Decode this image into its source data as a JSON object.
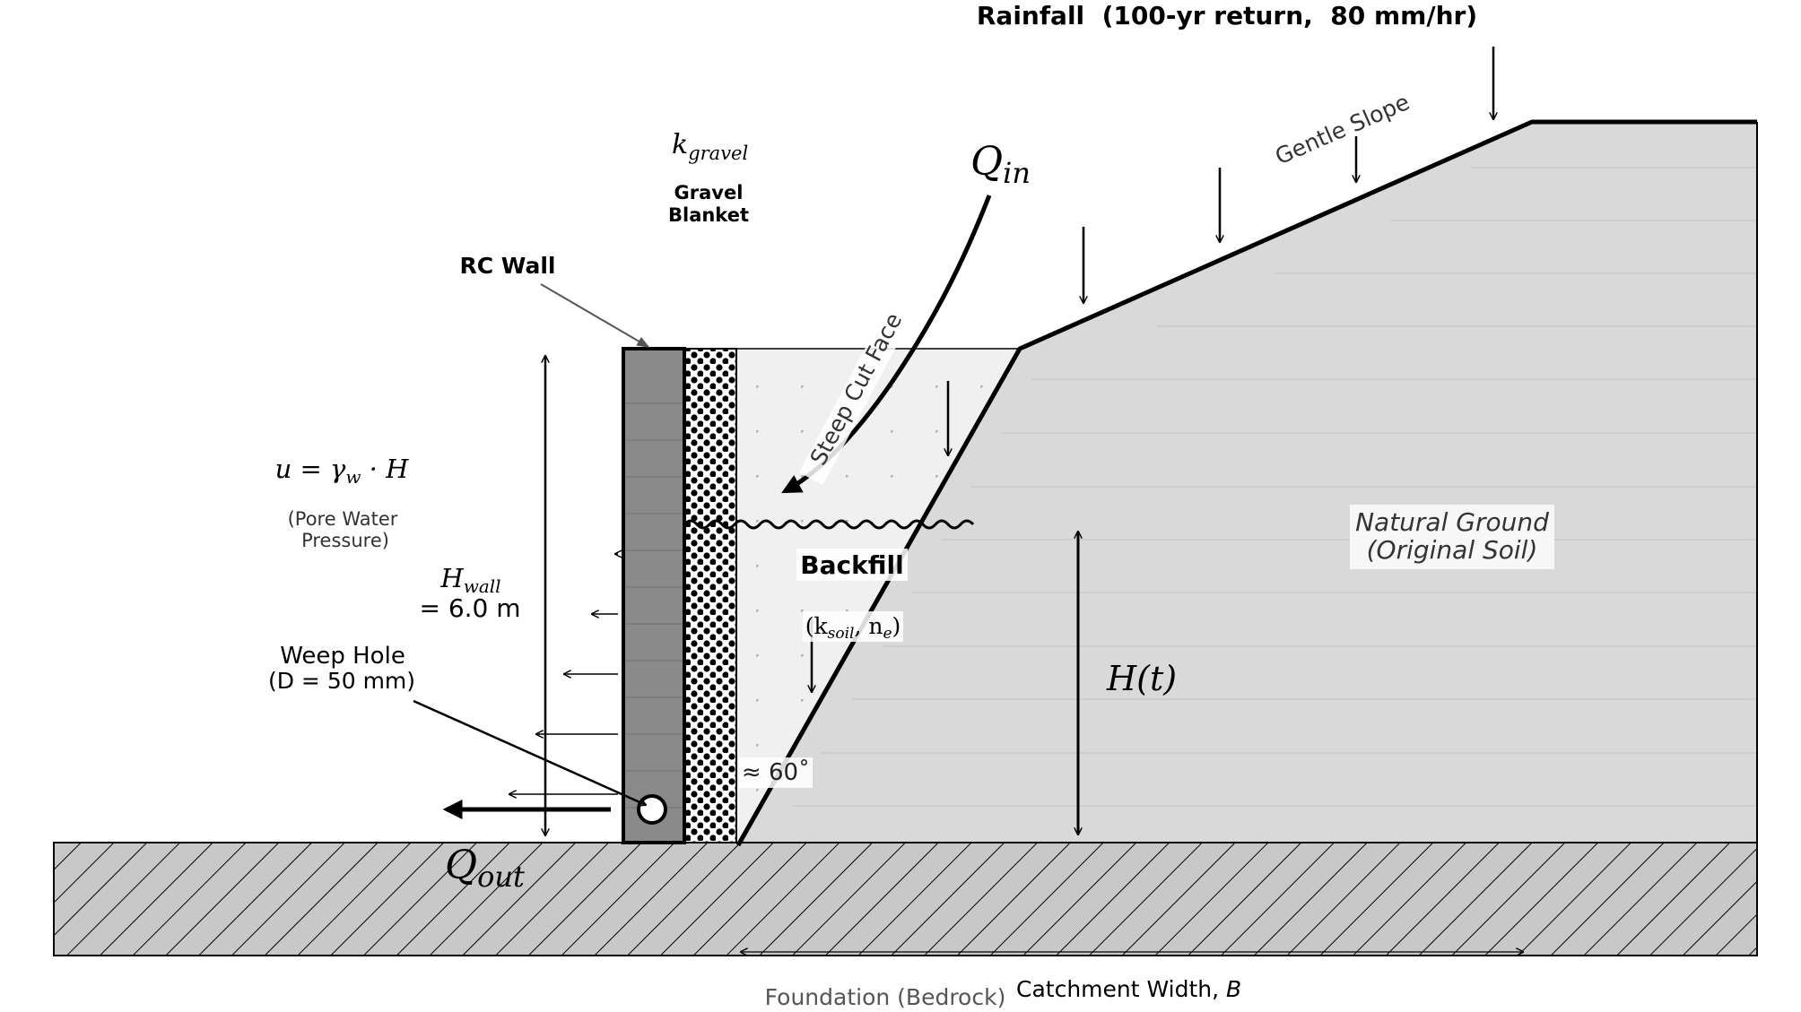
{
  "labels": {
    "rainfall": "Rainfall  (100-yr return,  80 mm/hr)",
    "gentle_slope": "Gentle Slope",
    "q_in_main": "Q",
    "q_in_sub": "in",
    "k_gravel_main": "k",
    "k_gravel_sub": "gravel",
    "gravel_line1": "Gravel",
    "gravel_line2": "Blanket",
    "rc_wall": "RC Wall",
    "steep_cut_face": "Steep Cut Face",
    "pore_formula": "u = γ",
    "pore_formula_sub": "w",
    "pore_formula_end": " · H",
    "pore_line1": "(Pore Water",
    "pore_line2": "Pressure)",
    "h_wall_main": "H",
    "h_wall_sub": "wall",
    "h_wall_value": "= 6.0 m",
    "weep_line1": "Weep Hole",
    "weep_line2": "(D = 50 mm)",
    "backfill": "Backfill",
    "backfill_params_open": "(k",
    "backfill_params_sub1": "soil",
    "backfill_params_mid": ", n",
    "backfill_params_sub2": "e",
    "backfill_params_close": ")",
    "angle": "≈ 60˚",
    "h_t": "H(t)",
    "natural_line1": "Natural Ground",
    "natural_line2": "(Original Soil)",
    "q_out_main": "Q",
    "q_out_sub": "out",
    "foundation": "Foundation (Bedrock)",
    "catchment": "Catchment Width, ",
    "catchment_var": "B"
  },
  "colors": {
    "natural_ground": "#d9d9d9",
    "backfill": "#f0f0f0",
    "wall": "#8a8a8a",
    "bedrock": "#c8c8c8",
    "ink": "#000000"
  }
}
